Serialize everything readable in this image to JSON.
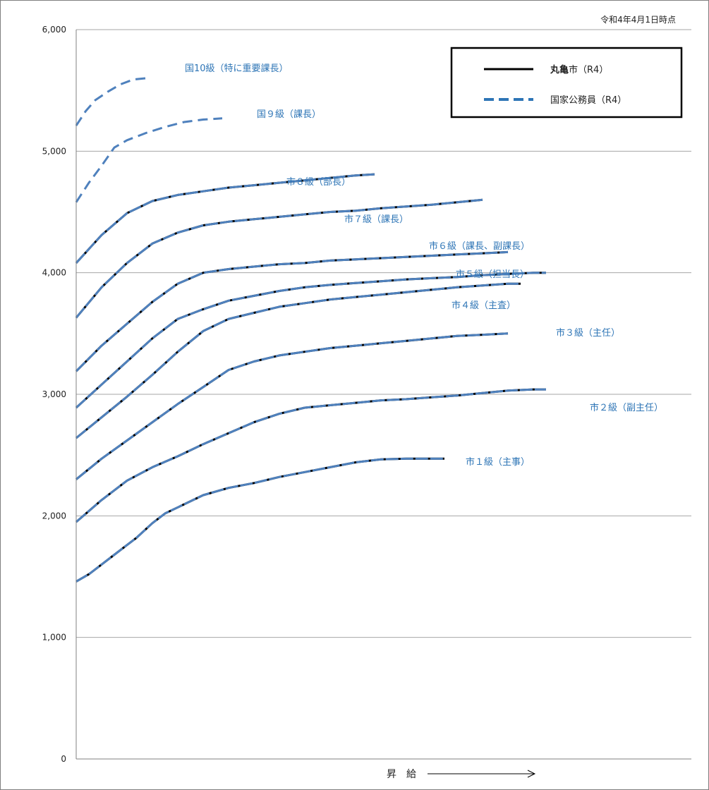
{
  "chart_data": {
    "type": "line",
    "note": "令和4年4月1日時点",
    "xlabel": "昇　給",
    "ylim": [
      0,
      6000
    ],
    "yticks": [
      0,
      1000,
      2000,
      3000,
      4000,
      5000,
      6000
    ],
    "ytick_labels": [
      "0",
      "1,000",
      "2,000",
      "3,000",
      "4,000",
      "5,000",
      "6,000"
    ],
    "grid": true,
    "legend_position": "top-right",
    "legend": [
      {
        "label_bold": "丸亀",
        "label_rest": "市（R4）",
        "style": "solid",
        "color": "#000000"
      },
      {
        "label_bold": "",
        "label_rest": "国家公務員（R4）",
        "style": "dashed",
        "color": "#4F81BD"
      }
    ],
    "colors": {
      "city": "#000000",
      "national": "#4F81BD",
      "label": "#2E75B6",
      "grid": "#A6A6A6"
    },
    "series": [
      {
        "name": "市１級（主事）",
        "group": "overlap",
        "steps": [
          0,
          4,
          8,
          12,
          16,
          19,
          24,
          28,
          32,
          40,
          48,
          56,
          64,
          72,
          80,
          88,
          96,
          104,
          112,
          116
        ],
        "values": [
          1460,
          1520,
          1600,
          1680,
          1760,
          1820,
          1940,
          2020,
          2070,
          2170,
          2230,
          2270,
          2320,
          2360,
          2400,
          2440,
          2465,
          2470,
          2470,
          2470
        ]
      },
      {
        "name": "市２級（副主任）",
        "group": "overlap",
        "steps": [
          0,
          8,
          16,
          24,
          32,
          40,
          48,
          56,
          64,
          72,
          80,
          88,
          96,
          104,
          112,
          120,
          128,
          136,
          144,
          148
        ],
        "values": [
          1950,
          2130,
          2290,
          2400,
          2490,
          2590,
          2680,
          2770,
          2840,
          2890,
          2910,
          2930,
          2950,
          2960,
          2975,
          2990,
          3010,
          3030,
          3040,
          3040
        ]
      },
      {
        "name": "市３級（主任）",
        "group": "overlap",
        "steps": [
          0,
          8,
          16,
          24,
          32,
          40,
          48,
          56,
          64,
          72,
          80,
          88,
          96,
          104,
          112,
          120,
          128,
          136
        ],
        "values": [
          2300,
          2470,
          2620,
          2770,
          2920,
          3060,
          3200,
          3270,
          3320,
          3350,
          3380,
          3400,
          3420,
          3440,
          3460,
          3480,
          3490,
          3500
        ]
      },
      {
        "name": "市４級（主査）",
        "group": "overlap",
        "steps": [
          0,
          8,
          16,
          24,
          32,
          40,
          48,
          56,
          64,
          72,
          80,
          88,
          96,
          104,
          112,
          120,
          128,
          136,
          140
        ],
        "values": [
          2640,
          2810,
          2980,
          3160,
          3350,
          3520,
          3620,
          3670,
          3720,
          3750,
          3780,
          3800,
          3820,
          3840,
          3860,
          3880,
          3895,
          3910,
          3910
        ]
      },
      {
        "name": "市５級（担当長）",
        "group": "overlap",
        "steps": [
          0,
          8,
          16,
          24,
          32,
          40,
          48,
          56,
          64,
          72,
          80,
          88,
          96,
          104,
          112,
          120,
          128,
          136,
          144,
          148
        ],
        "values": [
          2890,
          3080,
          3270,
          3460,
          3620,
          3700,
          3770,
          3810,
          3850,
          3880,
          3900,
          3915,
          3930,
          3945,
          3955,
          3965,
          3980,
          3990,
          4000,
          4000
        ]
      },
      {
        "name": "市６級（課長、副課長）",
        "group": "overlap",
        "steps": [
          0,
          8,
          16,
          24,
          32,
          40,
          48,
          56,
          64,
          72,
          80,
          88,
          96,
          104,
          112,
          120,
          128,
          136
        ],
        "values": [
          3190,
          3400,
          3580,
          3760,
          3910,
          4000,
          4030,
          4050,
          4070,
          4080,
          4100,
          4110,
          4120,
          4130,
          4140,
          4150,
          4160,
          4170
        ]
      },
      {
        "name": "市７級（課長）",
        "group": "overlap",
        "steps": [
          0,
          8,
          16,
          24,
          32,
          40,
          48,
          56,
          64,
          72,
          80,
          88,
          96,
          104,
          112,
          120,
          128
        ],
        "values": [
          3630,
          3880,
          4080,
          4240,
          4330,
          4390,
          4420,
          4440,
          4460,
          4480,
          4500,
          4510,
          4530,
          4545,
          4560,
          4580,
          4600
        ]
      },
      {
        "name": "市８級（部長）",
        "group": "overlap",
        "steps": [
          0,
          8,
          16,
          24,
          32,
          40,
          48,
          56,
          64,
          72,
          80,
          88,
          94
        ],
        "values": [
          4080,
          4310,
          4490,
          4590,
          4640,
          4670,
          4700,
          4720,
          4740,
          4760,
          4780,
          4800,
          4810
        ]
      },
      {
        "name": "国９級（課長）",
        "group": "national",
        "steps": [
          0,
          4,
          8,
          12,
          16,
          22,
          28,
          34,
          40,
          46
        ],
        "values": [
          4580,
          4740,
          4880,
          5030,
          5090,
          5150,
          5200,
          5240,
          5260,
          5270
        ]
      },
      {
        "name": "国10級（特に重要課長）",
        "group": "national",
        "steps": [
          0,
          3,
          6,
          10,
          14,
          18,
          22
        ],
        "values": [
          5210,
          5330,
          5420,
          5490,
          5550,
          5590,
          5600
        ]
      }
    ]
  }
}
